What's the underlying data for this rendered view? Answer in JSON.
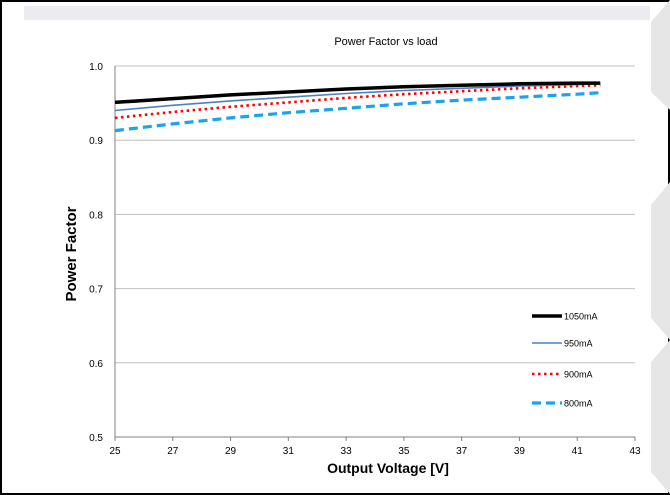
{
  "chart_data": {
    "type": "line",
    "title": "Power Factor vs load",
    "xlabel": "Output Voltage [V]",
    "ylabel": "Power Factor",
    "xlim": [
      25,
      43
    ],
    "ylim": [
      0.5,
      1.0
    ],
    "x_ticks": [
      "25",
      "27",
      "29",
      "31",
      "33",
      "35",
      "37",
      "39",
      "41",
      "43"
    ],
    "y_ticks": [
      "0.5",
      "0.6",
      "0.7",
      "0.8",
      "0.9",
      "1.0"
    ],
    "grid": "horizontal",
    "legend_position": "right",
    "series": [
      {
        "name": "1050mA",
        "color": "#000000",
        "style": "solid-thick",
        "x": [
          25,
          27,
          29,
          31,
          33,
          35,
          37,
          39,
          41,
          41.8
        ],
        "y": [
          0.951,
          0.956,
          0.961,
          0.965,
          0.969,
          0.972,
          0.974,
          0.976,
          0.977,
          0.977
        ]
      },
      {
        "name": "950mA",
        "color": "#4f81bd",
        "style": "solid-thin",
        "x": [
          25,
          27,
          29,
          31,
          33,
          35,
          37,
          39,
          41,
          41.8
        ],
        "y": [
          0.94,
          0.947,
          0.953,
          0.958,
          0.963,
          0.967,
          0.97,
          0.973,
          0.975,
          0.976
        ]
      },
      {
        "name": "900mA",
        "color": "#ff0000",
        "style": "dotted",
        "x": [
          25,
          27,
          29,
          31,
          33,
          35,
          37,
          39,
          41,
          41.8
        ],
        "y": [
          0.93,
          0.938,
          0.945,
          0.951,
          0.957,
          0.962,
          0.966,
          0.97,
          0.973,
          0.974
        ]
      },
      {
        "name": "800mA",
        "color": "#1ca3ec",
        "style": "dashed",
        "x": [
          25,
          27,
          29,
          31,
          33,
          35,
          37,
          39,
          41,
          41.8
        ],
        "y": [
          0.913,
          0.922,
          0.93,
          0.937,
          0.943,
          0.949,
          0.954,
          0.958,
          0.962,
          0.964
        ]
      }
    ]
  }
}
